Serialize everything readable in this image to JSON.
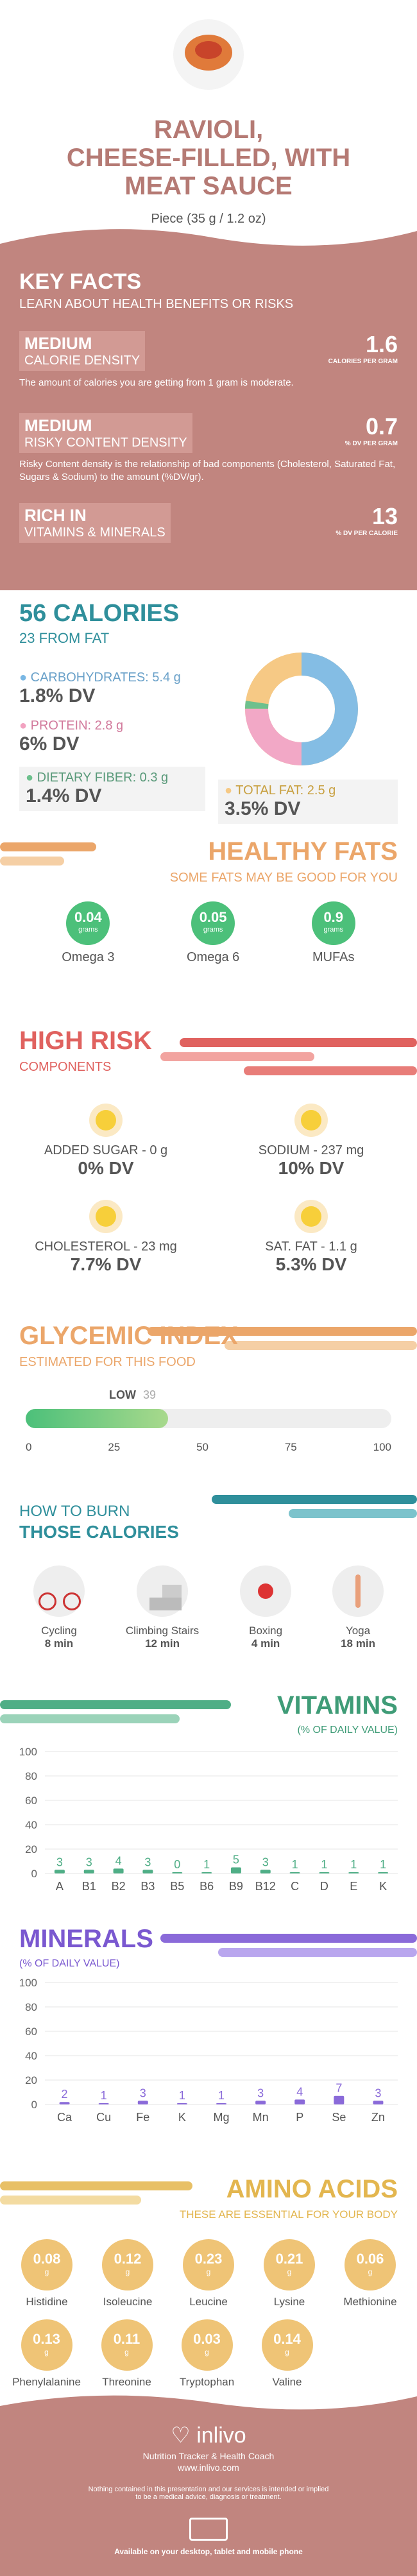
{
  "header": {
    "title_line1": "RAVIOLI,",
    "title_line2": "CHEESE-FILLED, WITH",
    "title_line3": "MEAT SAUCE",
    "serving": "Piece (35 g / 1.2 oz)"
  },
  "key_facts": {
    "title": "KEY FACTS",
    "subtitle": "LEARN ABOUT HEALTH BENEFITS OR RISKS",
    "calorie_badge": "MEDIUM",
    "calorie_label": "CALORIE DENSITY",
    "calorie_value": "1.6",
    "calorie_unit": "CALORIES PER GRAM",
    "calorie_desc": "The amount of calories you are getting from 1 gram is moderate.",
    "risky_badge": "MEDIUM",
    "risky_label": "RISKY CONTENT DENSITY",
    "risky_value": "0.7",
    "risky_unit": "% DV PER GRAM",
    "risky_desc": "Risky Content density is the relationship of bad components (Cholesterol, Saturated Fat, Sugars & Sodium) to the amount (%DV/gr).",
    "rich_badge": "RICH IN",
    "rich_label": "VITAMINS & MINERALS",
    "rich_value": "13",
    "rich_unit": "% DV PER CALORIE"
  },
  "calories": {
    "title": "56 CALORIES",
    "subtitle": "23 FROM FAT",
    "carbs_label": "CARBOHYDRATES: 5.4 g",
    "carbs_dv": "1.8% DV",
    "protein_label": "PROTEIN: 2.8 g",
    "protein_dv": "6% DV",
    "fiber_label": "DIETARY FIBER: 0.3 g",
    "fiber_dv": "1.4% DV",
    "fat_label": "TOTAL FAT: 2.5 g",
    "fat_dv": "3.5% DV"
  },
  "healthy_fats": {
    "title": "HEALTHY FATS",
    "subtitle": "SOME FATS MAY BE GOOD FOR YOU",
    "items": [
      {
        "value": "0.04",
        "unit": "grams",
        "name": "Omega 3"
      },
      {
        "value": "0.05",
        "unit": "grams",
        "name": "Omega 6"
      },
      {
        "value": "0.9",
        "unit": "grams",
        "name": "MUFAs"
      }
    ]
  },
  "high_risk": {
    "title": "HIGH RISK",
    "subtitle": "COMPONENTS",
    "items": [
      {
        "label": "ADDED SUGAR - 0 g",
        "dv": "0% DV"
      },
      {
        "label": "SODIUM - 237 mg",
        "dv": "10% DV"
      },
      {
        "label": "CHOLESTEROL - 23 mg",
        "dv": "7.7% DV"
      },
      {
        "label": "SAT. FAT - 1.1 g",
        "dv": "5.3% DV"
      }
    ]
  },
  "glycemic": {
    "title": "GLYCEMIC INDEX",
    "subtitle": "ESTIMATED FOR THIS FOOD",
    "low_label": "LOW",
    "value": "39",
    "ticks": [
      "0",
      "25",
      "50",
      "75",
      "100"
    ],
    "level": 39
  },
  "burn": {
    "title1": "HOW TO BURN",
    "title2": "THOSE CALORIES",
    "items": [
      {
        "name": "Cycling",
        "time": "8 min"
      },
      {
        "name": "Climbing Stairs",
        "time": "12 min"
      },
      {
        "name": "Boxing",
        "time": "4 min"
      },
      {
        "name": "Yoga",
        "time": "18 min"
      }
    ]
  },
  "vitamins": {
    "title": "VITAMINS",
    "subtitle": "(% OF DAILY VALUE)",
    "yticks": [
      "100",
      "80",
      "60",
      "40",
      "20",
      "0"
    ],
    "categories": [
      "A",
      "B1",
      "B2",
      "B3",
      "B5",
      "B6",
      "B9",
      "B12",
      "C",
      "D",
      "E",
      "K"
    ],
    "values": [
      3,
      3,
      4,
      3,
      0,
      1,
      5,
      3,
      1,
      1,
      1,
      1
    ],
    "labels": [
      "3",
      "3",
      "4",
      "3",
      "0",
      "1",
      "5",
      "3",
      "1",
      "1",
      "1",
      "1"
    ]
  },
  "minerals": {
    "title": "MINERALS",
    "subtitle": "(% OF DAILY VALUE)",
    "yticks": [
      "100",
      "80",
      "60",
      "40",
      "20",
      "0"
    ],
    "categories": [
      "Ca",
      "Cu",
      "Fe",
      "K",
      "Mg",
      "Mn",
      "P",
      "Se",
      "Zn"
    ],
    "values": [
      2,
      1,
      3,
      1,
      1,
      3,
      4,
      7,
      3
    ],
    "labels": [
      "2",
      "1",
      "3",
      "1",
      "1",
      "3",
      "4",
      "7",
      "3"
    ]
  },
  "amino": {
    "title": "AMINO ACIDS",
    "subtitle": "THESE ARE ESSENTIAL FOR YOUR BODY",
    "items": [
      {
        "value": "0.08",
        "unit": "g",
        "name": "Histidine"
      },
      {
        "value": "0.12",
        "unit": "g",
        "name": "Isoleucine"
      },
      {
        "value": "0.23",
        "unit": "g",
        "name": "Leucine"
      },
      {
        "value": "0.21",
        "unit": "g",
        "name": "Lysine"
      },
      {
        "value": "0.06",
        "unit": "g",
        "name": "Methionine"
      },
      {
        "value": "0.13",
        "unit": "g",
        "name": "Phenylalanine"
      },
      {
        "value": "0.11",
        "unit": "g",
        "name": "Threonine"
      },
      {
        "value": "0.03",
        "unit": "g",
        "name": "Tryptophan"
      },
      {
        "value": "0.14",
        "unit": "g",
        "name": "Valine"
      }
    ]
  },
  "footer": {
    "brand": "inlivo",
    "tagline": "Nutrition Tracker & Health Coach",
    "url": "www.inlivo.com",
    "disclaimer1": "Nothing contained in this presentation and our services is intended or implied",
    "disclaimer2": "to be a medical advice, diagnosis or treatment.",
    "available": "Available on your desktop, tablet and mobile phone"
  },
  "chart_data": [
    {
      "type": "bar",
      "title": "VITAMINS",
      "categories": [
        "A",
        "B1",
        "B2",
        "B3",
        "B5",
        "B6",
        "B9",
        "B12",
        "C",
        "D",
        "E",
        "K"
      ],
      "values": [
        3,
        3,
        4,
        3,
        0,
        1,
        5,
        3,
        1,
        1,
        1,
        1
      ],
      "ylim": [
        0,
        100
      ]
    },
    {
      "type": "bar",
      "title": "MINERALS",
      "categories": [
        "Ca",
        "Cu",
        "Fe",
        "K",
        "Mg",
        "Mn",
        "P",
        "Se",
        "Zn"
      ],
      "values": [
        2,
        1,
        3,
        1,
        1,
        3,
        4,
        7,
        3
      ],
      "ylim": [
        0,
        100
      ]
    }
  ],
  "colors": {
    "rose": "#c1857f",
    "teal": "#2f8f9b",
    "green": "#4cc07a",
    "orange": "#eba66a",
    "red": "#e0625f",
    "purple": "#8a6ad9",
    "gold": "#e8c066"
  }
}
